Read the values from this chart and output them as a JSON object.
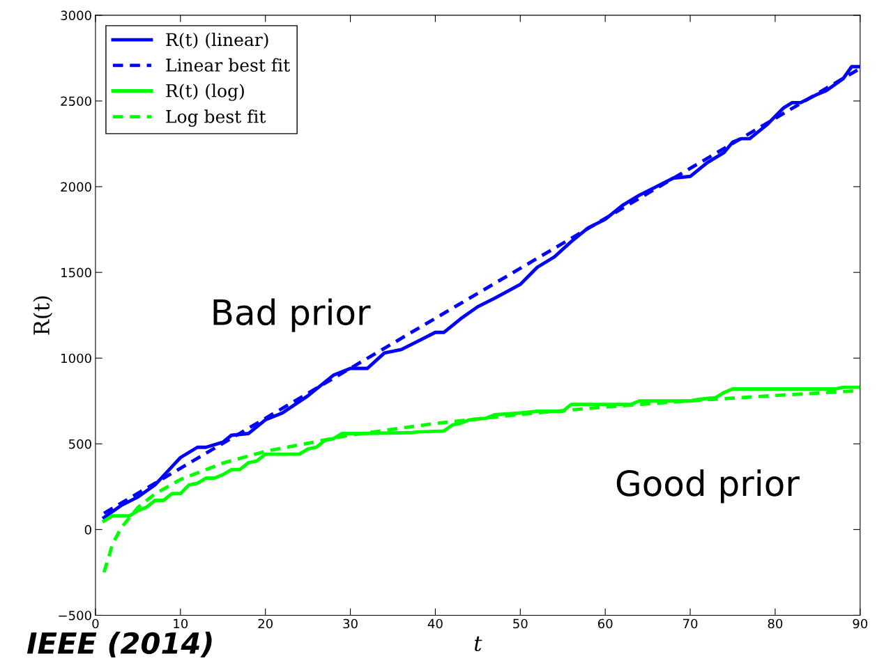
{
  "chart_data": {
    "type": "line",
    "xlabel": "t",
    "ylabel": "R(t)",
    "xlim": [
      0,
      90
    ],
    "xticks": [
      0,
      10,
      20,
      30,
      40,
      50,
      60,
      70,
      80,
      90
    ],
    "ylim": [
      -500,
      3000
    ],
    "yticks": [
      {
        "value": -500,
        "label": "−500"
      },
      0,
      500,
      1000,
      1500,
      2000,
      2500,
      3000
    ],
    "grid": false,
    "legend": "top left",
    "series": [
      {
        "name": "R(t) (linear)",
        "color": "#0000ff",
        "line_style": "solid",
        "x": [
          1,
          3,
          5,
          7,
          10,
          12,
          13,
          15,
          16,
          18,
          20,
          22,
          25,
          28,
          30,
          32,
          34,
          36,
          38,
          40,
          41,
          43,
          45,
          47,
          50,
          52,
          54,
          56,
          58,
          60,
          62,
          64,
          66,
          68,
          70,
          72,
          74,
          75,
          76,
          77,
          79,
          81,
          82,
          83,
          85,
          86,
          88,
          89,
          90
        ],
        "values": [
          70,
          140,
          190,
          260,
          420,
          480,
          480,
          510,
          550,
          560,
          640,
          680,
          780,
          900,
          940,
          940,
          1030,
          1050,
          1100,
          1150,
          1150,
          1230,
          1300,
          1350,
          1430,
          1530,
          1590,
          1680,
          1760,
          1810,
          1890,
          1950,
          2000,
          2050,
          2060,
          2140,
          2200,
          2260,
          2280,
          2280,
          2360,
          2460,
          2490,
          2490,
          2540,
          2560,
          2630,
          2700,
          2700
        ]
      },
      {
        "name": "Linear best fit",
        "color": "#0000ff",
        "line_style": "dashed",
        "x": [
          1,
          90
        ],
        "values": [
          95,
          2690
        ]
      },
      {
        "name": "R(t) (log)",
        "color": "#00ff00",
        "line_style": "solid",
        "x": [
          1,
          2,
          4,
          5,
          6,
          7,
          8,
          9,
          10,
          11,
          12,
          13,
          14,
          15,
          16,
          17,
          18,
          19,
          20,
          24,
          25,
          26,
          27,
          28,
          29,
          31,
          37,
          38,
          41,
          42,
          43,
          44,
          46,
          47,
          50,
          52,
          55,
          56,
          63,
          64,
          70,
          71,
          73,
          74,
          75,
          77,
          87,
          88,
          90
        ],
        "values": [
          50,
          80,
          80,
          110,
          130,
          170,
          170,
          210,
          210,
          260,
          270,
          300,
          300,
          320,
          350,
          350,
          390,
          400,
          440,
          440,
          470,
          480,
          520,
          530,
          560,
          560,
          565,
          570,
          575,
          610,
          620,
          640,
          650,
          670,
          680,
          690,
          690,
          730,
          730,
          750,
          750,
          760,
          770,
          800,
          820,
          820,
          820,
          830,
          830
        ]
      },
      {
        "name": "Log best fit",
        "color": "#00ff00",
        "line_style": "dashed",
        "x": [
          1,
          2,
          3,
          5,
          7,
          10,
          15,
          20,
          30,
          40,
          50,
          60,
          70,
          80,
          90
        ],
        "values": [
          -250,
          -87,
          9,
          129,
          208,
          292,
          388,
          456,
          551,
          619,
          672,
          715,
          751,
          782,
          810
        ]
      }
    ],
    "annotations": [
      "Bad prior",
      "Good prior",
      "IEEE (2014)"
    ]
  }
}
